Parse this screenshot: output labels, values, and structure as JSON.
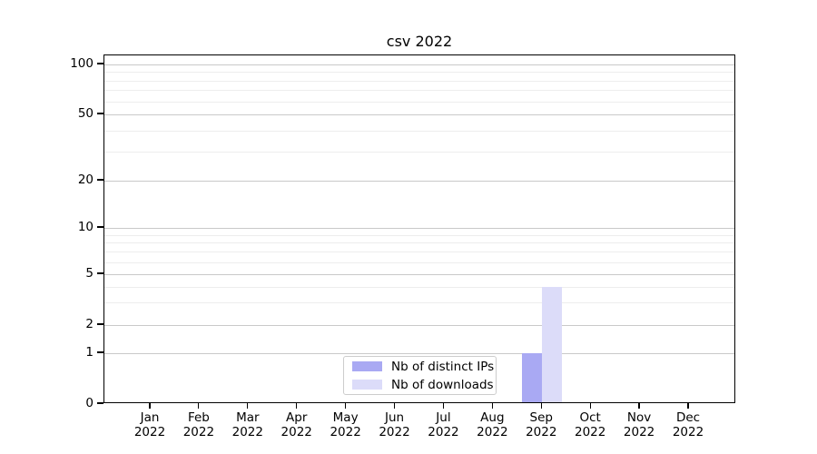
{
  "chart_data": {
    "type": "bar",
    "title": "csv 2022",
    "categories": [
      "Jan",
      "Feb",
      "Mar",
      "Apr",
      "May",
      "Jun",
      "Jul",
      "Aug",
      "Sep",
      "Oct",
      "Nov",
      "Dec"
    ],
    "category_year": "2022",
    "series": [
      {
        "name": "Nb of distinct IPs",
        "color": "#a9a9f3",
        "values": [
          0,
          0,
          0,
          0,
          0,
          0,
          0,
          0,
          1,
          0,
          0,
          0
        ]
      },
      {
        "name": "Nb of downloads",
        "color": "#dcdcf9",
        "values": [
          0,
          0,
          0,
          0,
          0,
          0,
          0,
          0,
          4,
          0,
          0,
          0
        ]
      }
    ],
    "yscale": "log (with 0 baseline)",
    "ylim": [
      0,
      100
    ],
    "y_major_ticks": [
      0,
      1,
      2,
      5,
      10,
      20,
      50,
      100
    ],
    "y_minor_gridlines": [
      3,
      4,
      6,
      7,
      8,
      9,
      30,
      40,
      60,
      70,
      80,
      90
    ],
    "grid": true,
    "legend_position": "lower center inside plot",
    "legend_labels": [
      "Nb of distinct IPs",
      "Nb of downloads"
    ]
  },
  "colors": {
    "axis": "#000000",
    "grid_major": "#c9c9c9",
    "grid_minor": "#ededed",
    "background": "#ffffff",
    "legend_border": "#cccccc",
    "text": "#000000"
  }
}
